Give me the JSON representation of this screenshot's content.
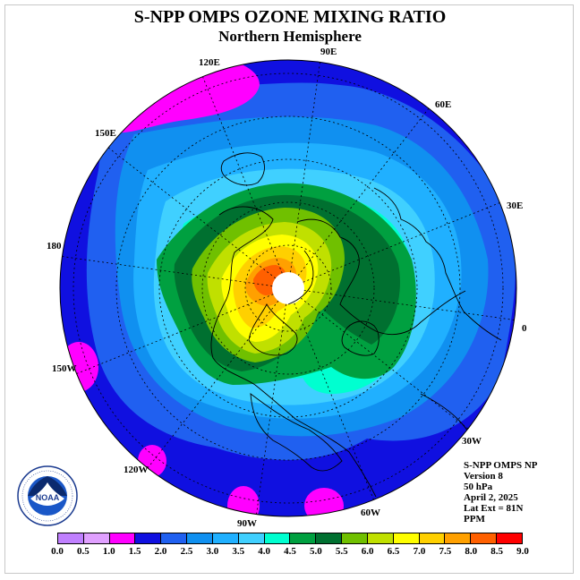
{
  "header": {
    "title": "S-NPP OMPS OZONE MIXING RATIO",
    "subtitle": "Northern Hemisphere"
  },
  "map": {
    "longitude_labels": [
      "90E",
      "60E",
      "30E",
      "0",
      "30W",
      "60W",
      "90W",
      "120W",
      "150W",
      "180",
      "150E",
      "120E"
    ]
  },
  "info": {
    "line1": "S-NPP OMPS NP",
    "line2": "Version 8",
    "line3": "50 hPa",
    "line4": "April 2, 2025",
    "line5": "Lat Ext = 81N",
    "line6": "PPM"
  },
  "logo": {
    "text": "NOAA",
    "ring_text": "NATIONAL OCEANIC AND ATMOSPHERIC ADMINISTRATION · U.S. DEPARTMENT OF COMMERCE"
  },
  "colorbar": {
    "ticks": [
      "0.0",
      "0.5",
      "1.0",
      "1.5",
      "2.0",
      "2.5",
      "3.0",
      "3.5",
      "4.0",
      "4.5",
      "5.0",
      "5.5",
      "6.0",
      "6.5",
      "7.0",
      "7.5",
      "8.0",
      "8.5",
      "9.0"
    ],
    "colors": [
      "#c080ff",
      "#e0a0ff",
      "#ff00ff",
      "#1010e0",
      "#2060f0",
      "#1090f0",
      "#20b0ff",
      "#40d0ff",
      "#00ffd0",
      "#00a040",
      "#007030",
      "#70c000",
      "#c0e000",
      "#ffff00",
      "#ffd000",
      "#ffa000",
      "#ff6000",
      "#ff0000",
      "#8b5a2b"
    ]
  },
  "palette": {
    "land_outline": "#000000",
    "ocean_bg": "#1010e0"
  }
}
